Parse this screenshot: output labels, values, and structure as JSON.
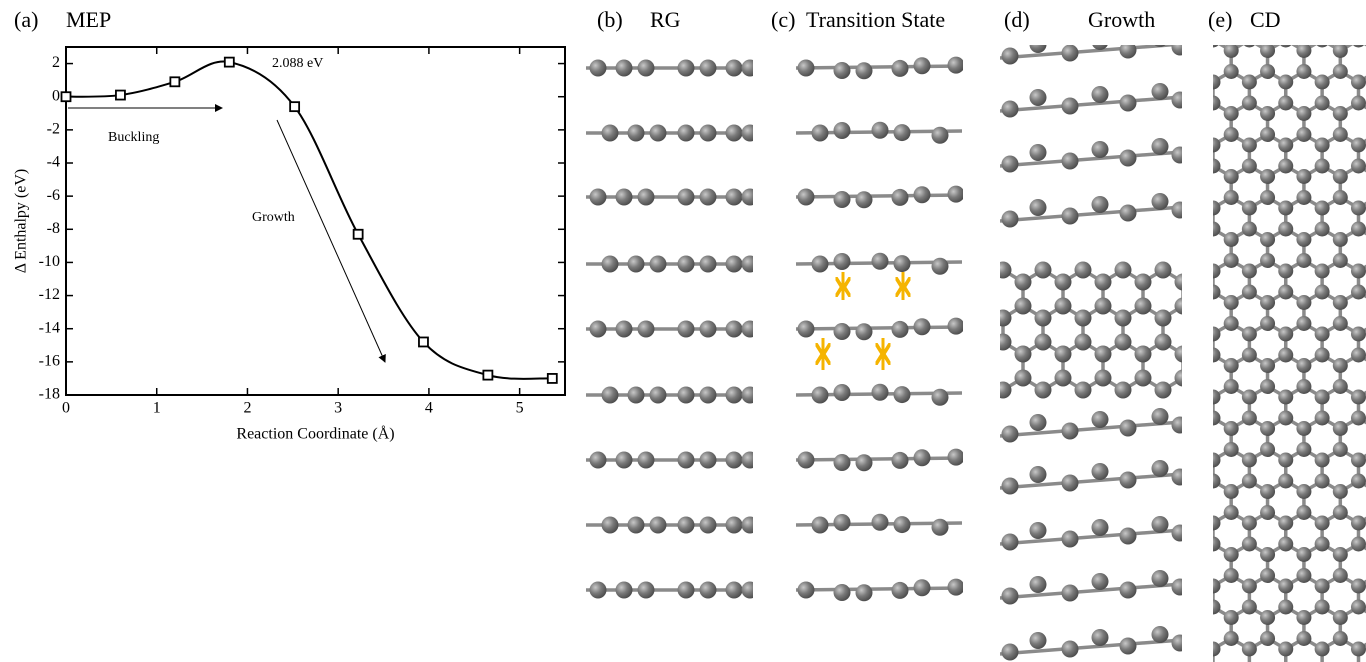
{
  "chart_data": {
    "type": "line",
    "panel_label": "(a)",
    "title": "MEP",
    "xlabel": "Reaction Coordinate (Å)",
    "ylabel": "Δ Enthalpy (eV)",
    "x": [
      0,
      0.6,
      1.2,
      1.8,
      2.52,
      3.22,
      3.94,
      4.65,
      5.36
    ],
    "values": [
      0,
      0.1,
      0.9,
      2.088,
      -0.6,
      -8.3,
      -14.8,
      -16.8,
      -17.0
    ],
    "color": "#000000",
    "xlim": [
      0,
      5.5
    ],
    "xticks": [
      0,
      1,
      2,
      3,
      4,
      5
    ],
    "ylim": [
      -18,
      3
    ],
    "yticks": [
      2,
      0,
      -2,
      -4,
      -6,
      -8,
      -10,
      -12,
      -14,
      -16,
      -18
    ],
    "annotations": [
      "2.088 eV",
      "Buckling",
      "Growth"
    ]
  },
  "panels": [
    {
      "label": "(b)",
      "title": "RG"
    },
    {
      "label": "(c)",
      "title": "Transition State"
    },
    {
      "label": "(d)",
      "title": "Growth"
    },
    {
      "label": "(e)",
      "title": "CD"
    }
  ]
}
